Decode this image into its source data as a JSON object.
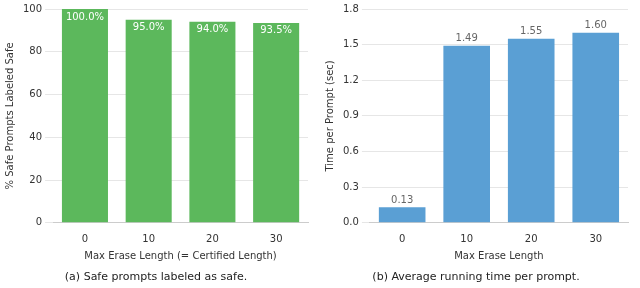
{
  "chart_data": [
    {
      "type": "bar",
      "title": "(a) Safe prompts labeled as safe.",
      "x_label": "Max Erase Length (= Certified Length)",
      "y_label": "% Safe Prompts Labeled Safe",
      "categories": [
        "0",
        "10",
        "20",
        "30"
      ],
      "values": [
        100,
        95,
        94,
        93.5
      ],
      "value_labels": [
        "100.0%",
        "95.0%",
        "94.0%",
        "93.5%"
      ],
      "data_labels": true,
      "color": "#5cb85c",
      "ylim": [
        0,
        100
      ],
      "yticks": [
        0,
        20,
        40,
        60,
        80,
        100
      ],
      "grid": true
    },
    {
      "type": "bar",
      "title": "(b) Average running time per prompt.",
      "x_label": "Max Erase Length",
      "y_label": "Time per Prompt (sec)",
      "categories": [
        "0",
        "10",
        "20",
        "30"
      ],
      "values": [
        0.13,
        1.49,
        1.55,
        1.6
      ],
      "value_labels": [
        "0.13",
        "1.49",
        "1.55",
        "1.60"
      ],
      "data_labels": true,
      "color": "#5a9fd4",
      "ylim": [
        0,
        1.8
      ],
      "yticks": [
        {
          "value": 0,
          "label": "0.0"
        },
        0.3,
        0.6,
        0.9,
        1.2,
        1.5,
        1.8
      ],
      "grid": true
    }
  ]
}
